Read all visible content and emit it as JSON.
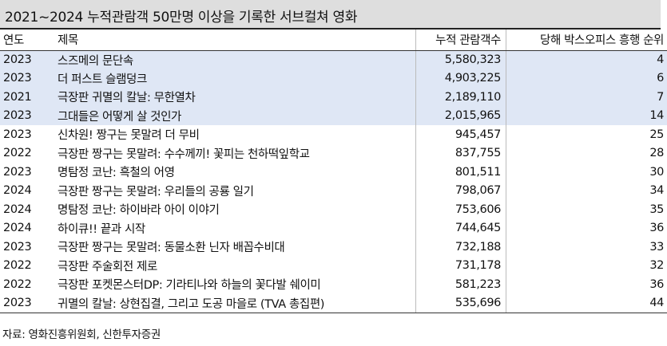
{
  "title": "2021~2024 누적관람객 50만명 이상을 기록한 서브컬쳐 영화",
  "columns": {
    "year": "연도",
    "title": "제목",
    "audience": "누적 관람객수",
    "rank": "당해 박스오피스 흥행 순위"
  },
  "rows": [
    {
      "year": "2023",
      "title": "스즈메의 문단속",
      "audience": "5,580,323",
      "rank": "4",
      "highlight": true
    },
    {
      "year": "2023",
      "title": "더 퍼스트 슬램덩크",
      "audience": "4,903,225",
      "rank": "6",
      "highlight": true
    },
    {
      "year": "2021",
      "title": "극장판 귀멸의 칼날: 무한열차",
      "audience": "2,189,110",
      "rank": "7",
      "highlight": true
    },
    {
      "year": "2023",
      "title": "그대들은 어떻게 살 것인가",
      "audience": "2,015,965",
      "rank": "14",
      "highlight": true
    },
    {
      "year": "2023",
      "title": "신차원! 짱구는 못말려 더 무비",
      "audience": "945,457",
      "rank": "25",
      "highlight": false
    },
    {
      "year": "2022",
      "title": "극장판 짱구는 못말려: 수수께끼! 꽃피는 천하떡잎학교",
      "audience": "837,755",
      "rank": "28",
      "highlight": false
    },
    {
      "year": "2023",
      "title": "명탐정 코난: 흑철의 어영",
      "audience": "801,511",
      "rank": "30",
      "highlight": false
    },
    {
      "year": "2024",
      "title": "극장판 짱구는 못말려: 우리들의 공룡 일기",
      "audience": "798,067",
      "rank": "34",
      "highlight": false
    },
    {
      "year": "2024",
      "title": "명탐정 코난: 하이바라 아이 이야기",
      "audience": "753,606",
      "rank": "35",
      "highlight": false
    },
    {
      "year": "2024",
      "title": "하이큐!! 끝과 시작",
      "audience": "744,645",
      "rank": "36",
      "highlight": false
    },
    {
      "year": "2023",
      "title": "극장판 짱구는 못말려: 동물소환 닌자 배꼽수비대",
      "audience": "732,188",
      "rank": "33",
      "highlight": false
    },
    {
      "year": "2022",
      "title": "극장판 주술회전 제로",
      "audience": "731,178",
      "rank": "32",
      "highlight": false
    },
    {
      "year": "2022",
      "title": "극장판 포켓몬스터DP: 기라티나와 하늘의 꽃다발 쉐이미",
      "audience": "581,223",
      "rank": "36",
      "highlight": false
    },
    {
      "year": "2023",
      "title": "귀멸의 칼날: 상현집결, 그리고 도공 마을로 (TVA 총집편)",
      "audience": "535,696",
      "rank": "44",
      "highlight": false
    }
  ],
  "source": "자료: 영화진흥위원회, 신한투자증권",
  "colors": {
    "header_bg": "#dedede",
    "highlight_bg": "#dfe7f5",
    "rule": "#222222"
  }
}
